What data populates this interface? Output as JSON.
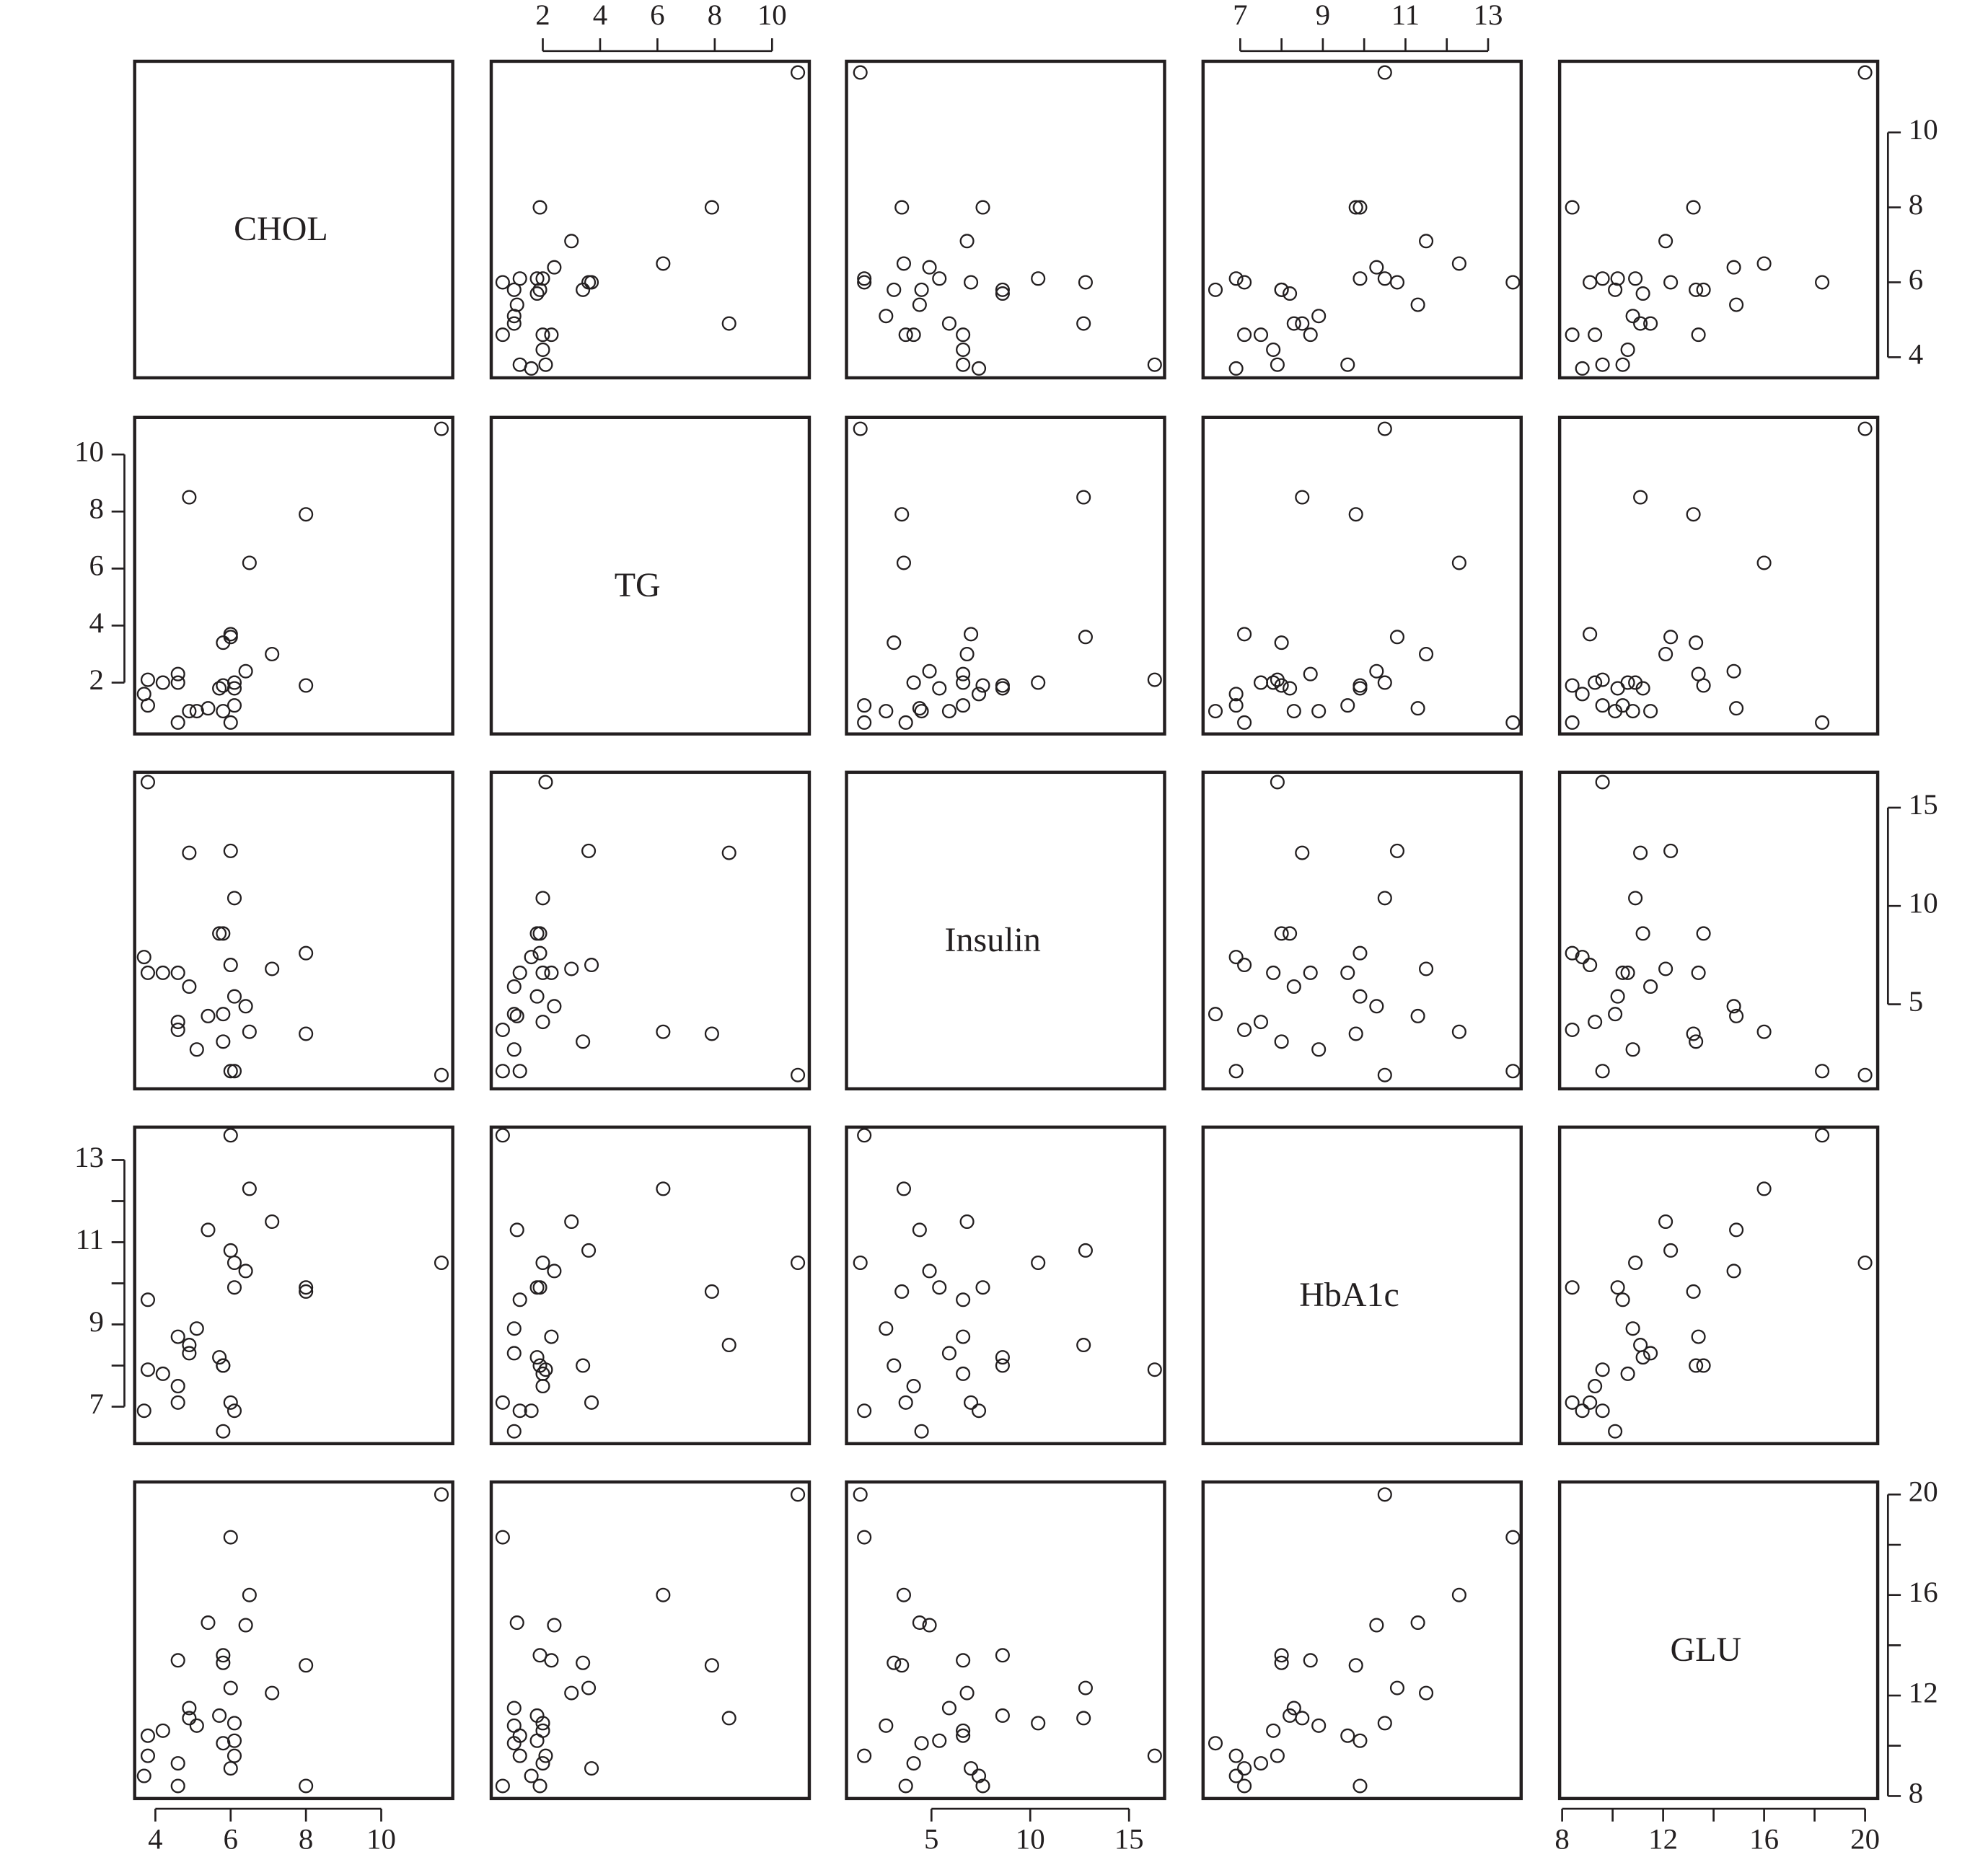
{
  "chart_data": {
    "type": "pairs",
    "color": "#231f20",
    "variables": [
      {
        "name": "CHOL",
        "values": [
          3.8,
          3.7,
          3.8,
          4.2,
          4.6,
          4.6,
          4.6,
          4.9,
          4.9,
          5.1,
          5.4,
          5.7,
          5.8,
          5.8,
          5.8,
          6.0,
          6.0,
          6.0,
          6.1,
          6.1,
          6.1,
          6.4,
          6.5,
          7.1,
          8.0,
          8.0,
          11.6
        ],
        "lim": [
          3.45,
          11.9
        ],
        "ticks": [
          4,
          6,
          8,
          10
        ]
      },
      {
        "name": "TG",
        "values": [
          2.1,
          1.6,
          1.2,
          2.0,
          2.3,
          2.0,
          0.6,
          8.5,
          1.0,
          1.0,
          1.1,
          1.8,
          1.9,
          3.4,
          1.0,
          3.7,
          3.6,
          0.6,
          2.0,
          1.8,
          1.2,
          2.4,
          6.2,
          3.0,
          7.9,
          1.9,
          10.9
        ],
        "lim": [
          0.2,
          11.3
        ],
        "ticks": [
          2,
          4,
          6,
          8,
          10
        ]
      },
      {
        "name": "Insulin",
        "values": [
          16.3,
          7.4,
          6.6,
          6.6,
          6.6,
          4.1,
          3.7,
          12.7,
          5.9,
          2.7,
          4.4,
          8.6,
          8.6,
          3.1,
          4.5,
          7.0,
          12.8,
          1.6,
          10.4,
          5.4,
          1.6,
          4.9,
          3.6,
          6.8,
          3.5,
          7.6,
          1.4
        ],
        "lim": [
          0.7,
          16.8
        ],
        "ticks": [
          5,
          10,
          15
        ]
      },
      {
        "name": "HbA1c",
        "values": [
          7.9,
          6.9,
          9.6,
          7.8,
          8.7,
          7.5,
          7.1,
          8.5,
          8.3,
          8.9,
          11.3,
          8.2,
          8.0,
          8.0,
          6.4,
          7.1,
          10.8,
          13.6,
          10.5,
          9.9,
          6.9,
          10.3,
          12.3,
          11.5,
          9.8,
          9.9,
          10.5
        ],
        "lim": [
          6.1,
          13.8
        ],
        "ticks": [
          7,
          9,
          11,
          13
        ],
        "minor_ticks": [
          8,
          10,
          12
        ]
      },
      {
        "name": "GLU",
        "values": [
          9.6,
          8.8,
          10.4,
          10.6,
          13.4,
          9.3,
          8.4,
          11.1,
          11.5,
          10.8,
          14.9,
          11.2,
          13.6,
          13.3,
          10.1,
          9.1,
          12.3,
          18.3,
          10.9,
          10.2,
          9.6,
          14.8,
          16.0,
          12.1,
          13.2,
          8.4,
          20.0
        ],
        "lim": [
          7.9,
          20.5
        ],
        "ticks": [
          8,
          12,
          16,
          20
        ],
        "minor_ticks": [
          10,
          14,
          18
        ]
      }
    ]
  }
}
